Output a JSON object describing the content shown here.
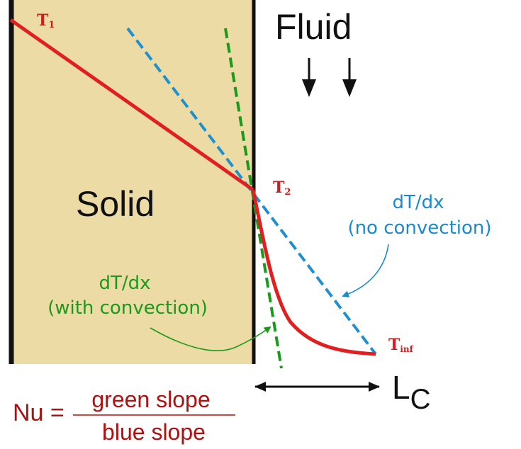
{
  "labels": {
    "fluid": "Fluid",
    "solid": "Solid",
    "t1_main": "T",
    "t1_sub": "1",
    "t2_main": "T",
    "t2_sub": "2",
    "tinf_main": "T",
    "tinf_sub": "inf",
    "no_conv_line1": "dT/dx",
    "no_conv_line2": "(no convection)",
    "with_conv_line1": "dT/dx",
    "with_conv_line2": "(with convection)",
    "lc_main": "L",
    "lc_sub": "C",
    "nu": "Nu =",
    "numerator": "green slope",
    "denominator": "blue slope"
  },
  "colors": {
    "solid_fill": "#eddba6",
    "wall": "#111111",
    "temperature_curve": "#e02020",
    "blue_tangent": "#1e90d0",
    "green_tangent": "#1a9a1a",
    "blue_text": "#1a8ad0",
    "green_text": "#1a9a1a",
    "label_red": "#cc1f1f",
    "formula_red": "#b01010",
    "arrow": "#111111"
  },
  "icons": {
    "flow_arrows": "down-arrow-icon",
    "length_arrow": "double-headed-arrow-icon"
  }
}
